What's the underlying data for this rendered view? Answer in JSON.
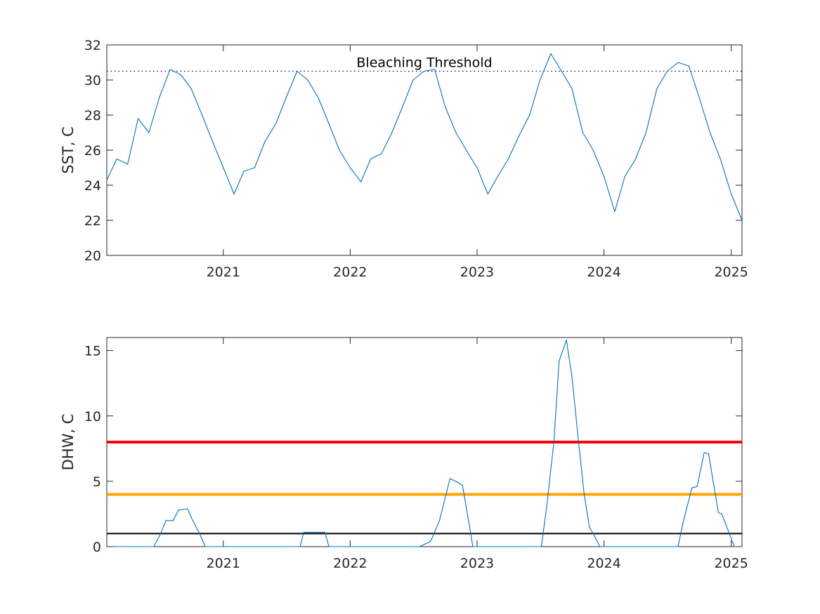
{
  "colors": {
    "series": "#0072BD",
    "threshold_dots": "#000080",
    "alert_red": "#FF0000",
    "alert_orange": "#FFA500",
    "alert_black": "#000000",
    "axis": "#262626"
  },
  "chart_data": [
    {
      "type": "line",
      "ylabel": "SST, C",
      "ylim": [
        20,
        32
      ],
      "yticks": [
        "20",
        "22",
        "24",
        "26",
        "28",
        "30",
        "32"
      ],
      "xlim": [
        "2020-02-01",
        "2025-02-01"
      ],
      "xticks": [
        "2021",
        "2022",
        "2023",
        "2024",
        "2025"
      ],
      "annotation": "Bleaching Threshold",
      "threshold": 30.5,
      "series": [
        {
          "x": [
            "2020-02-01",
            "2020-03-01",
            "2020-04-01",
            "2020-05-01",
            "2020-06-01",
            "2020-07-01",
            "2020-08-01",
            "2020-09-01",
            "2020-10-01",
            "2020-11-01",
            "2020-12-01",
            "2021-01-01",
            "2021-02-01",
            "2021-03-01",
            "2021-04-01",
            "2021-05-01",
            "2021-06-01",
            "2021-07-01",
            "2021-08-01",
            "2021-09-01",
            "2021-10-01",
            "2021-11-01",
            "2021-12-01",
            "2022-01-01",
            "2022-02-01",
            "2022-03-01",
            "2022-04-01",
            "2022-05-01",
            "2022-06-01",
            "2022-07-01",
            "2022-08-01",
            "2022-09-01",
            "2022-10-01",
            "2022-11-01",
            "2022-12-01",
            "2023-01-01",
            "2023-02-01",
            "2023-03-01",
            "2023-04-01",
            "2023-05-01",
            "2023-06-01",
            "2023-07-01",
            "2023-08-01",
            "2023-09-01",
            "2023-10-01",
            "2023-11-01",
            "2023-12-01",
            "2024-01-01",
            "2024-02-01",
            "2024-03-01",
            "2024-04-01",
            "2024-05-01",
            "2024-06-01",
            "2024-07-01",
            "2024-08-01",
            "2024-09-01",
            "2024-10-01",
            "2024-11-01",
            "2024-12-01",
            "2025-01-01",
            "2025-02-01"
          ],
          "values": [
            24.3,
            25.5,
            25.2,
            27.8,
            27.0,
            29.0,
            30.6,
            30.3,
            29.5,
            28.0,
            26.5,
            25.0,
            23.5,
            24.8,
            25.0,
            26.5,
            27.5,
            29.0,
            30.5,
            30.0,
            29.0,
            27.5,
            26.0,
            25.0,
            24.2,
            25.5,
            25.8,
            27.0,
            28.5,
            30.0,
            30.5,
            30.6,
            28.5,
            27.0,
            26.0,
            25.0,
            23.5,
            24.5,
            25.5,
            26.8,
            28.0,
            30.0,
            31.5,
            30.5,
            29.5,
            27.0,
            26.0,
            24.5,
            22.5,
            24.5,
            25.5,
            27.0,
            29.5,
            30.5,
            31.0,
            30.8,
            29.0,
            27.0,
            25.5,
            23.5,
            22.0
          ]
        }
      ]
    },
    {
      "type": "line",
      "ylabel": "DHW, C",
      "ylim": [
        0,
        16
      ],
      "yticks": [
        "0",
        "5",
        "10",
        "15"
      ],
      "xlim": [
        "2020-02-01",
        "2025-02-01"
      ],
      "xticks": [
        "2021",
        "2022",
        "2023",
        "2024",
        "2025"
      ],
      "reference_lines": [
        {
          "value": 8,
          "color": "#FF0000"
        },
        {
          "value": 4,
          "color": "#FFA500"
        },
        {
          "value": 1,
          "color": "#000000"
        }
      ],
      "series": [
        {
          "x": [
            "2020-02-01",
            "2020-06-15",
            "2020-07-05",
            "2020-07-20",
            "2020-08-10",
            "2020-08-25",
            "2020-09-20",
            "2020-10-05",
            "2020-10-25",
            "2020-11-10",
            "2021-08-10",
            "2021-08-20",
            "2021-09-10",
            "2021-10-20",
            "2021-11-01",
            "2022-07-20",
            "2022-08-20",
            "2022-09-15",
            "2022-10-15",
            "2022-11-01",
            "2022-11-20",
            "2022-12-01",
            "2022-12-20",
            "2023-07-05",
            "2023-07-20",
            "2023-08-10",
            "2023-08-25",
            "2023-09-15",
            "2023-10-01",
            "2023-10-20",
            "2023-11-05",
            "2023-11-20",
            "2023-12-05",
            "2023-12-20",
            "2024-08-01",
            "2024-08-15",
            "2024-09-10",
            "2024-09-25",
            "2024-10-15",
            "2024-10-28",
            "2024-11-10",
            "2024-11-25",
            "2024-12-05",
            "2025-01-10",
            "2025-02-01"
          ],
          "values": [
            0,
            0,
            1.0,
            2.0,
            2.0,
            2.8,
            2.9,
            2.0,
            1.0,
            0,
            0,
            1.1,
            1.1,
            1.1,
            0,
            0,
            0.4,
            2.0,
            5.2,
            5.0,
            4.7,
            3.0,
            0,
            0,
            3.0,
            8.0,
            14.2,
            15.8,
            13.0,
            8.0,
            4.0,
            1.5,
            0.8,
            0,
            0,
            1.8,
            4.5,
            4.6,
            7.2,
            7.1,
            5.0,
            2.6,
            2.5,
            0,
            0
          ]
        }
      ]
    }
  ]
}
